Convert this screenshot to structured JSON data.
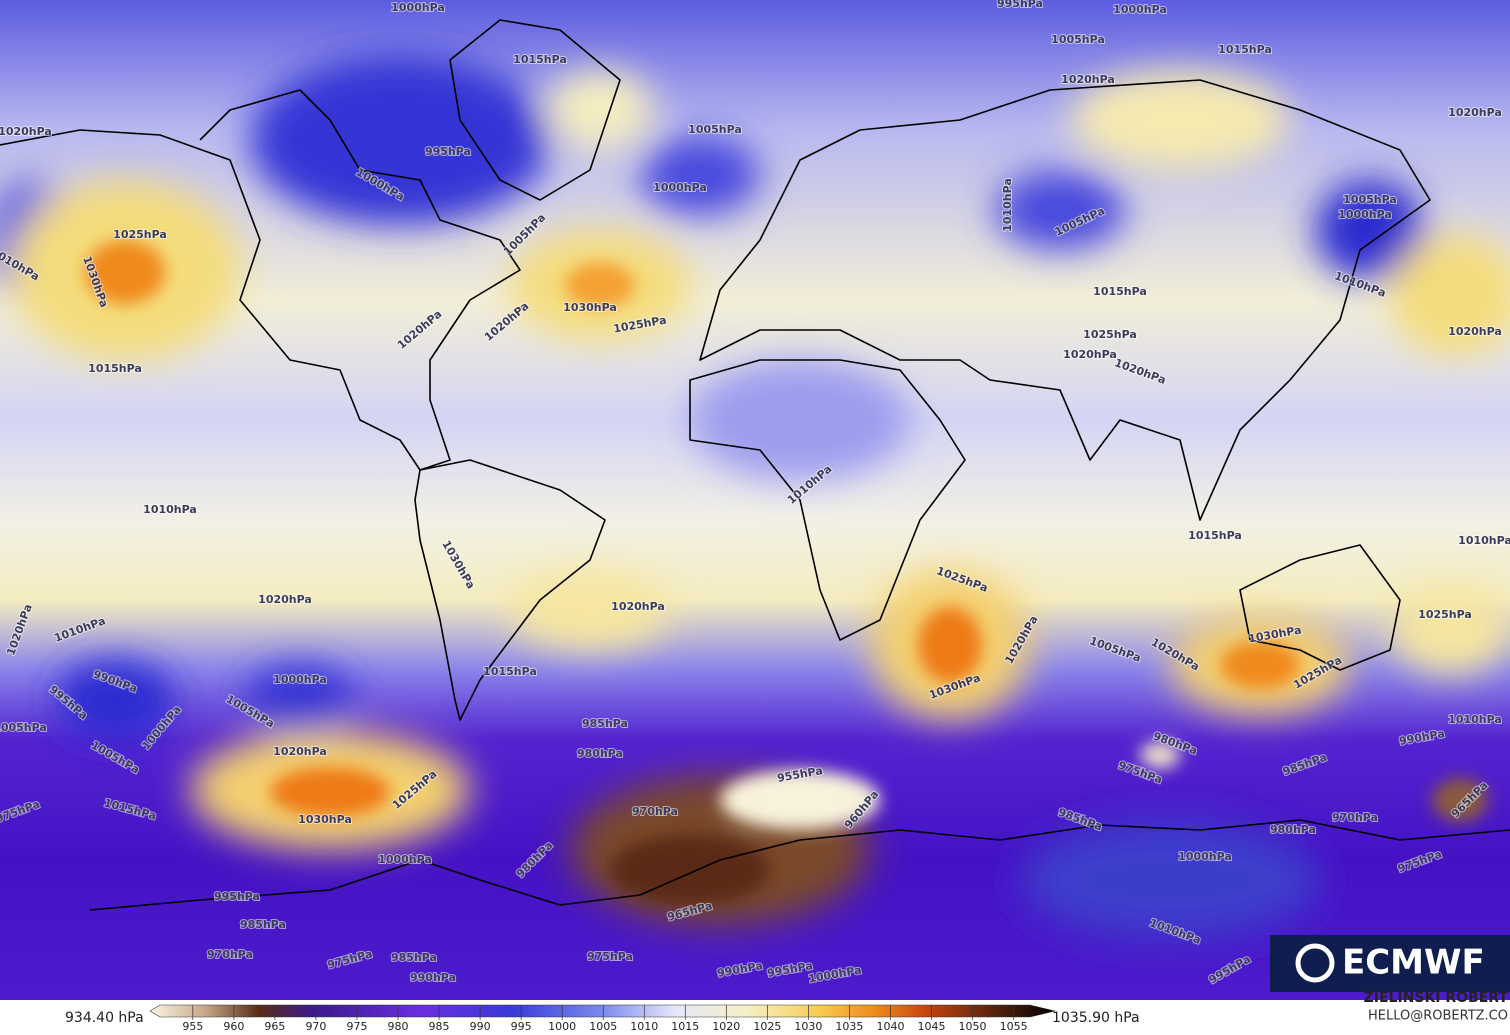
{
  "map": {
    "contour_labels": [
      "1000hPa",
      "995hPa",
      "1000hPa",
      "1005hPa",
      "1015hPa",
      "1015hPa",
      "1020hPa",
      "1020hPa",
      "1020hPa",
      "1005hPa",
      "995hPa",
      "1000hPa",
      "1000hPa",
      "1005hPa",
      "1000hPa",
      "1010hPa",
      "1005hPa",
      "1005hPa",
      "1025hPa",
      "1010hPa",
      "1030hPa",
      "1015hPa",
      "1010hPa",
      "1030hPa",
      "1025hPa",
      "1020hPa",
      "1020hPa",
      "1025hPa",
      "1020hPa",
      "1020hPa",
      "1020hPa",
      "1015hPa",
      "1010hPa",
      "1010hPa",
      "1030hPa",
      "1015hPa",
      "1010hPa",
      "1025hPa",
      "1020hPa",
      "1020hPa",
      "1020hPa",
      "1010hPa",
      "1025hPa",
      "1030hPa",
      "1020hPa",
      "1005hPa",
      "1020hPa",
      "1015hPa",
      "1025hPa",
      "990hPa",
      "1000hPa",
      "1030hPa",
      "995hPa",
      "1005hPa",
      "1000hPa",
      "1010hPa",
      "1005hPa",
      "985hPa",
      "990hPa",
      "980hPa",
      "980hPa",
      "1020hPa",
      "1005hPa",
      "955hPa",
      "975hPa",
      "985hPa",
      "1025hPa",
      "965hPa",
      "1015hPa",
      "975hPa",
      "960hPa",
      "970hPa",
      "985hPa",
      "970hPa",
      "980hPa",
      "1030hPa",
      "1000hPa",
      "980hPa",
      "1000hPa",
      "975hPa",
      "995hPa",
      "965hPa",
      "985hPa",
      "1010hPa",
      "970hPa",
      "975hPa",
      "985hPa",
      "975hPa",
      "990hPa",
      "990hPa",
      "995hPa",
      "1000hPa",
      "995hPa"
    ]
  },
  "colorbar": {
    "min_label": "934.40 hPa",
    "max_label": "1035.90 hPa",
    "range": [
      951,
      1057
    ],
    "ticks": [
      955,
      960,
      965,
      970,
      975,
      980,
      985,
      990,
      995,
      1000,
      1005,
      1010,
      1015,
      1020,
      1025,
      1030,
      1035,
      1040,
      1045,
      1050,
      1055
    ]
  },
  "credit": {
    "author": "ZIELINSKI ROBERT",
    "email": "HELLO@ROBERTZ.CO"
  },
  "logo": {
    "text": "ECMWF"
  }
}
